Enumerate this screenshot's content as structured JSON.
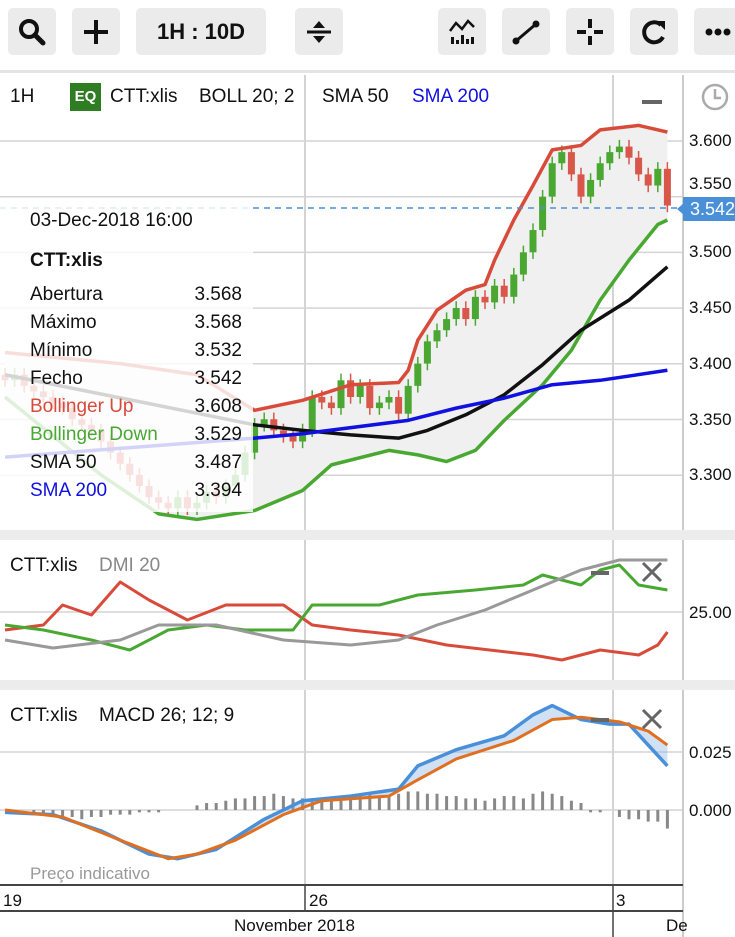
{
  "toolbar": {
    "range_label": "1H : 10D",
    "buttons": [
      "search-icon",
      "plus-icon",
      "resize-icon",
      "indicators-icon",
      "draw-line-icon",
      "crosshair-icon",
      "refresh-icon",
      "more-icon"
    ]
  },
  "main": {
    "interval": "1H",
    "badge": "EQ",
    "symbol": "CTT:xlis",
    "studies": [
      "BOLL 20; 2",
      "SMA 50",
      "SMA 200"
    ],
    "last_price": "3.542",
    "price_ticks": [
      "3.600",
      "3.550",
      "3.500",
      "3.450",
      "3.400",
      "3.350",
      "3.300"
    ]
  },
  "tooltip": {
    "date": "03-Dec-2018 16:00",
    "symbol": "CTT:xlis",
    "rows": [
      {
        "label": "Abertura",
        "value": "3.568"
      },
      {
        "label": "Máximo",
        "value": "3.568"
      },
      {
        "label": "Mínimo",
        "value": "3.532"
      },
      {
        "label": "Fecho",
        "value": "3.542"
      },
      {
        "label": "Bollinger Up",
        "value": "3.608"
      },
      {
        "label": "Bollinger Down",
        "value": "3.529"
      },
      {
        "label": "SMA 50",
        "value": "3.487"
      },
      {
        "label": "SMA 200",
        "value": "3.394"
      }
    ]
  },
  "dmi": {
    "symbol": "CTT:xlis",
    "study": "DMI 20",
    "tick": "25.00"
  },
  "macd": {
    "symbol": "CTT:xlis",
    "study": "MACD 26; 12; 9",
    "ticks": [
      "0.025",
      "0.000"
    ],
    "watermark": "Preço indicativo"
  },
  "xaxis": {
    "days": [
      "19",
      "26",
      "3"
    ],
    "months": [
      "November 2018",
      "De"
    ]
  },
  "colors": {
    "up": "#4aa832",
    "down": "#d9564a",
    "boll_up": "#d84a3a",
    "boll_down": "#48a832",
    "sma50": "#111111",
    "sma200": "#1010e0",
    "accent": "#4a90d9",
    "badge": "#2e7d23"
  },
  "chart_data": [
    {
      "type": "candlestick",
      "panel": "price",
      "closes": [
        3.385,
        3.39,
        3.38,
        3.375,
        3.37,
        3.365,
        3.36,
        3.35,
        3.345,
        3.34,
        3.33,
        3.32,
        3.31,
        3.3,
        3.29,
        3.28,
        3.275,
        3.27,
        3.28,
        3.27,
        3.275,
        3.285,
        3.28,
        3.29,
        3.3,
        3.32,
        3.345,
        3.35,
        3.34,
        3.335,
        3.33,
        3.34,
        3.37,
        3.365,
        3.36,
        3.385,
        3.37,
        3.38,
        3.36,
        3.365,
        3.37,
        3.355,
        3.38,
        3.4,
        3.42,
        3.43,
        3.44,
        3.45,
        3.44,
        3.46,
        3.455,
        3.47,
        3.46,
        3.48,
        3.5,
        3.52,
        3.55,
        3.58,
        3.59,
        3.57,
        3.55,
        3.565,
        3.58,
        3.59,
        3.595,
        3.585,
        3.57,
        3.56,
        3.575,
        3.542
      ],
      "series": [
        {
          "name": "Bollinger Up",
          "points": [
            [
              0,
              3.41
            ],
            [
              12,
              3.4
            ],
            [
              20,
              3.39
            ],
            [
              26,
              3.358
            ],
            [
              31,
              3.367
            ],
            [
              36,
              3.381
            ],
            [
              41,
              3.383
            ],
            [
              42,
              3.394
            ],
            [
              43,
              3.421
            ],
            [
              45,
              3.448
            ],
            [
              48,
              3.466
            ],
            [
              50,
              3.471
            ],
            [
              51,
              3.493
            ],
            [
              53,
              3.529
            ],
            [
              55,
              3.56
            ],
            [
              57,
              3.592
            ],
            [
              60,
              3.596
            ],
            [
              62,
              3.61
            ],
            [
              66,
              3.614
            ],
            [
              69,
              3.608
            ]
          ]
        },
        {
          "name": "Bollinger Down",
          "points": [
            [
              0,
              3.37
            ],
            [
              10,
              3.3
            ],
            [
              16,
              3.265
            ],
            [
              20,
              3.26
            ],
            [
              26,
              3.268
            ],
            [
              31,
              3.286
            ],
            [
              34,
              3.309
            ],
            [
              40,
              3.322
            ],
            [
              43,
              3.318
            ],
            [
              46,
              3.312
            ],
            [
              49,
              3.322
            ],
            [
              52,
              3.349
            ],
            [
              56,
              3.381
            ],
            [
              59,
              3.412
            ],
            [
              62,
              3.457
            ],
            [
              65,
              3.493
            ],
            [
              68,
              3.525
            ],
            [
              69,
              3.529
            ]
          ]
        },
        {
          "name": "SMA 50",
          "points": [
            [
              0,
              3.39
            ],
            [
              26,
              3.345
            ],
            [
              31,
              3.34
            ],
            [
              36,
              3.336
            ],
            [
              41,
              3.333
            ],
            [
              44,
              3.34
            ],
            [
              48,
              3.354
            ],
            [
              52,
              3.372
            ],
            [
              56,
              3.399
            ],
            [
              60,
              3.43
            ],
            [
              65,
              3.457
            ],
            [
              69,
              3.487
            ]
          ]
        },
        {
          "name": "SMA 200",
          "points": [
            [
              0,
              3.316
            ],
            [
              26,
              3.333
            ],
            [
              31,
              3.337
            ],
            [
              42,
              3.349
            ],
            [
              47,
              3.36
            ],
            [
              52,
              3.369
            ],
            [
              57,
              3.381
            ],
            [
              62,
              3.385
            ],
            [
              69,
              3.394
            ]
          ]
        }
      ],
      "ylim": [
        3.25,
        3.66
      ]
    },
    {
      "type": "line",
      "panel": "dmi",
      "series": [
        {
          "name": "DI-",
          "points": [
            [
              0,
              16
            ],
            [
              4,
              18.5
            ],
            [
              6,
              28.5
            ],
            [
              9,
              23.5
            ],
            [
              12,
              40
            ],
            [
              15,
              31
            ],
            [
              19,
              21
            ],
            [
              23,
              28.5
            ],
            [
              29,
              28.5
            ],
            [
              32,
              18.5
            ],
            [
              36,
              16
            ],
            [
              41,
              13.5
            ],
            [
              46,
              8.5
            ],
            [
              55,
              3.5
            ],
            [
              58,
              1
            ],
            [
              62,
              6
            ],
            [
              66,
              3.5
            ],
            [
              68,
              8.5
            ],
            [
              69,
              15
            ]
          ]
        },
        {
          "name": "DI+",
          "points": [
            [
              0,
              18.5
            ],
            [
              4,
              16
            ],
            [
              9,
              11
            ],
            [
              13,
              6
            ],
            [
              17,
              16
            ],
            [
              21,
              18.5
            ],
            [
              25,
              16
            ],
            [
              30,
              16
            ],
            [
              32,
              28.5
            ],
            [
              39,
              28.5
            ],
            [
              43,
              33.5
            ],
            [
              49,
              36
            ],
            [
              54,
              38.5
            ],
            [
              56,
              43.5
            ],
            [
              58,
              41
            ],
            [
              60,
              38.5
            ],
            [
              62,
              46
            ],
            [
              64,
              48.5
            ],
            [
              66,
              38.5
            ],
            [
              69,
              36
            ]
          ]
        },
        {
          "name": "ADX",
          "points": [
            [
              0,
              11
            ],
            [
              5,
              7
            ],
            [
              12,
              11
            ],
            [
              16,
              18.5
            ],
            [
              22,
              18.5
            ],
            [
              29,
              11
            ],
            [
              36,
              8.5
            ],
            [
              41,
              11
            ],
            [
              45,
              18.5
            ],
            [
              50,
              26
            ],
            [
              55,
              36
            ],
            [
              60,
              46
            ],
            [
              64,
              51
            ],
            [
              69,
              51
            ]
          ]
        }
      ]
    },
    {
      "type": "line",
      "panel": "macd",
      "series": [
        {
          "name": "MACD",
          "points": [
            [
              0,
              -0.001
            ],
            [
              5,
              -0.002
            ],
            [
              10,
              -0.009
            ],
            [
              15,
              -0.019
            ],
            [
              18,
              -0.021
            ],
            [
              22,
              -0.017
            ],
            [
              27,
              -0.004
            ],
            [
              31,
              0.004
            ],
            [
              36,
              0.006
            ],
            [
              41,
              0.009
            ],
            [
              43,
              0.019
            ],
            [
              47,
              0.026
            ],
            [
              52,
              0.032
            ],
            [
              55,
              0.041
            ],
            [
              57,
              0.045
            ],
            [
              60,
              0.039
            ],
            [
              63,
              0.037
            ],
            [
              65,
              0.037
            ],
            [
              67,
              0.028
            ],
            [
              69,
              0.019
            ]
          ]
        },
        {
          "name": "Signal",
          "points": [
            [
              0,
              0
            ],
            [
              6,
              -0.003
            ],
            [
              12,
              -0.013
            ],
            [
              17,
              -0.021
            ],
            [
              20,
              -0.019
            ],
            [
              24,
              -0.013
            ],
            [
              29,
              -0.002
            ],
            [
              33,
              0.004
            ],
            [
              40,
              0.006
            ],
            [
              43,
              0.013
            ],
            [
              47,
              0.022
            ],
            [
              53,
              0.03
            ],
            [
              57,
              0.039
            ],
            [
              60,
              0.04
            ],
            [
              64,
              0.038
            ],
            [
              67,
              0.034
            ],
            [
              69,
              0.028
            ]
          ]
        }
      ],
      "histogram": [
        0,
        0,
        0,
        -0.001,
        -0.002,
        -0.002,
        -0.003,
        -0.003,
        -0.004,
        -0.003,
        -0.003,
        -0.002,
        -0.002,
        -0.002,
        -0.001,
        -0.001,
        -0.001,
        0,
        0,
        0,
        0.002,
        0.003,
        0.003,
        0.004,
        0.005,
        0.005,
        0.006,
        0.006,
        0.007,
        0.006,
        0.005,
        0.005,
        0.004,
        0.004,
        0.005,
        0.005,
        0.006,
        0.007,
        0.007,
        0.006,
        0.006,
        0.007,
        0.008,
        0.008,
        0.007,
        0.007,
        0.006,
        0.006,
        0.005,
        0.005,
        0.004,
        0.005,
        0.006,
        0.006,
        0.005,
        0.007,
        0.008,
        0.007,
        0.006,
        0.004,
        0.003,
        -0.001,
        -0.001,
        0,
        -0.003,
        -0.004,
        -0.004,
        -0.005,
        -0.005,
        -0.008
      ]
    }
  ]
}
